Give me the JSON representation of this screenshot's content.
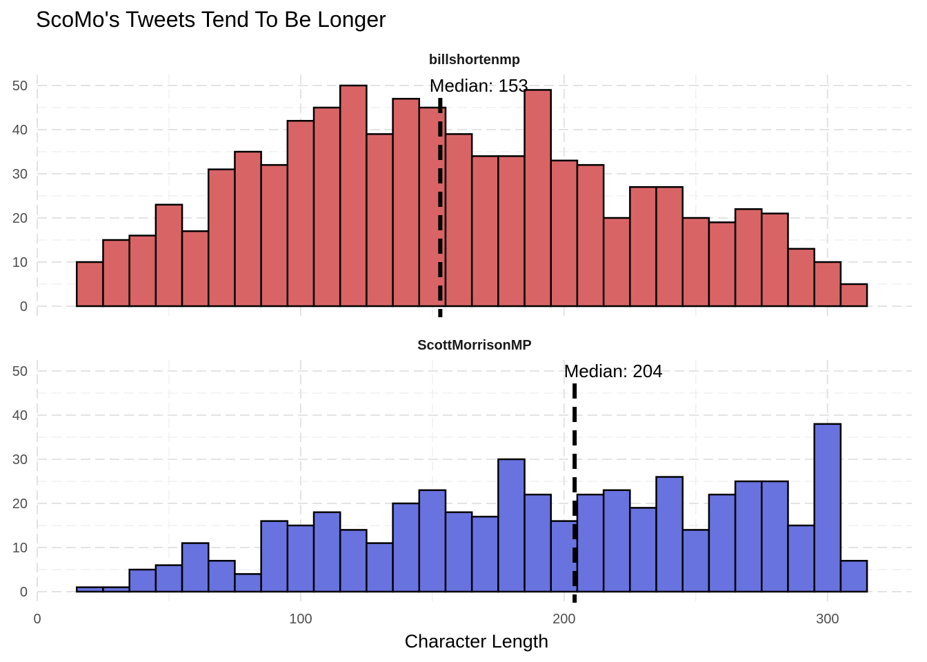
{
  "chart_data": {
    "type": "bar",
    "title": "ScoMo's Tweets Tend To Be Longer",
    "xlabel": "Character Length",
    "ylabel": "",
    "xlim": [
      0,
      332
    ],
    "ylim": [
      -2.5,
      52.5
    ],
    "x_ticks": [
      0,
      100,
      200,
      300
    ],
    "y_ticks": [
      0,
      10,
      20,
      30,
      40,
      50
    ],
    "grid": true,
    "bin_width": 10,
    "bin_starts": [
      15,
      25,
      35,
      45,
      55,
      65,
      75,
      85,
      95,
      105,
      115,
      125,
      135,
      145,
      155,
      165,
      175,
      185,
      195,
      205,
      215,
      225,
      235,
      245,
      255,
      265,
      275,
      285,
      295,
      305,
      315
    ],
    "panels": [
      {
        "label": "billshortenmp",
        "color": "#d96466",
        "median": 153,
        "median_label": "Median: 153",
        "values": [
          10,
          15,
          16,
          23,
          17,
          31,
          35,
          32,
          42,
          45,
          50,
          39,
          47,
          45,
          39,
          34,
          34,
          49,
          33,
          32,
          20,
          27,
          27,
          20,
          19,
          22,
          21,
          13,
          10,
          5
        ]
      },
      {
        "label": "ScottMorrisonMP",
        "color": "#6873e0",
        "median": 204,
        "median_label": "Median: 204",
        "values": [
          1,
          1,
          5,
          6,
          11,
          7,
          4,
          16,
          15,
          18,
          14,
          11,
          20,
          23,
          18,
          17,
          30,
          22,
          16,
          22,
          23,
          19,
          26,
          14,
          22,
          25,
          25,
          15,
          38,
          7
        ]
      }
    ]
  }
}
